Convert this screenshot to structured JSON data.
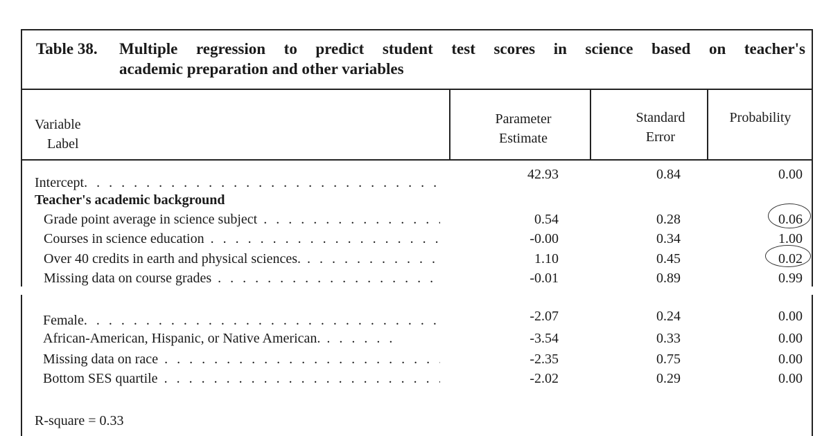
{
  "table": {
    "number": "Table 38.",
    "title_line1": "Multiple regression to predict student test scores in science based on teacher's",
    "title_line2": "academic preparation and other variables",
    "headers": {
      "variable_line1": "Variable",
      "variable_line2": "Label",
      "estimate_line1": "Parameter",
      "estimate_line2": "Estimate",
      "error_line1": "Standard",
      "error_line2": "Error",
      "probability": "Probability"
    },
    "rows_top": [
      {
        "label": "Intercept",
        "estimate": "42.93",
        "error": "0.84",
        "prob": "0.00"
      },
      {
        "label": "Teacher's academic background",
        "estimate": "",
        "error": "",
        "prob": ""
      },
      {
        "label": "Grade point average in science subject",
        "estimate": "0.54",
        "error": "0.28",
        "prob": "0.06"
      },
      {
        "label": "Courses in science education",
        "estimate": "-0.00",
        "error": "0.34",
        "prob": "1.00"
      },
      {
        "label": "Over 40 credits in earth and physical sciences.",
        "estimate": "1.10",
        "error": "0.45",
        "prob": "0.02"
      },
      {
        "label": "Missing data on course grades",
        "estimate": "-0.01",
        "error": "0.89",
        "prob": "0.99"
      }
    ],
    "rows_bottom": [
      {
        "label": "Female",
        "estimate": "-2.07",
        "error": "0.24",
        "prob": "0.00"
      },
      {
        "label": "African-American, Hispanic, or Native American.",
        "estimate": "-3.54",
        "error": "0.33",
        "prob": "0.00"
      },
      {
        "label": "Missing data on race",
        "estimate": "-2.35",
        "error": "0.75",
        "prob": "0.00"
      },
      {
        "label": "Bottom SES quartile",
        "estimate": "-2.02",
        "error": "0.29",
        "prob": "0.00"
      }
    ],
    "r_square": "R-square = 0.33"
  }
}
